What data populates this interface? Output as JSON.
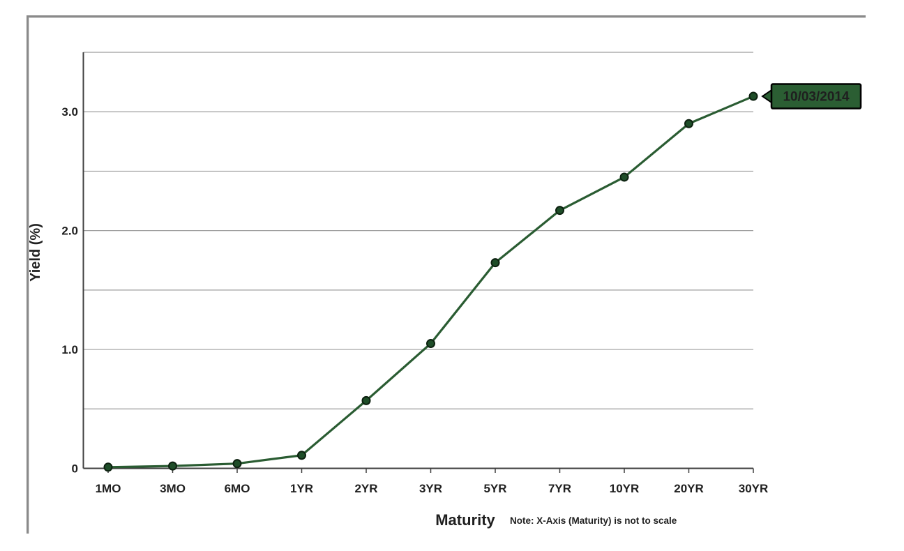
{
  "page": {
    "background_color": "#ffffff",
    "frame_color": "#8a8a8a"
  },
  "chart_data": {
    "type": "line",
    "title": "",
    "categories": [
      "1MO",
      "3MO",
      "6MO",
      "1YR",
      "2YR",
      "3YR",
      "5YR",
      "7YR",
      "10YR",
      "20YR",
      "30YR"
    ],
    "values": [
      0.01,
      0.02,
      0.04,
      0.11,
      0.57,
      1.05,
      1.73,
      2.17,
      2.45,
      2.9,
      3.13
    ],
    "series_date": "10/03/2014",
    "xlabel": "Maturity",
    "ylabel": "Yield (%)",
    "x_note": "Note: X-Axis (Maturity) is not to scale",
    "ylim": [
      0,
      3.5
    ],
    "ytick_values": [
      0,
      1,
      2,
      3
    ],
    "ytick_labels": [
      "0",
      "1.0",
      "2.0",
      "3.0"
    ],
    "grid_interval": 0.5,
    "grid": true,
    "legend_position": "none",
    "colors": {
      "line": "#2a5c32",
      "marker_fill": "#1e4d28",
      "marker_edge": "#0c200f",
      "gridline": "#9e9e9e",
      "axis": "#3f3f3f",
      "tick_text": "#1f1f1f"
    },
    "annotation": {
      "text": "10/03/2014",
      "attached_to": "30YR",
      "fill": "#2b5e33",
      "border": "#000000",
      "text_color": "#f4f9f4"
    }
  }
}
